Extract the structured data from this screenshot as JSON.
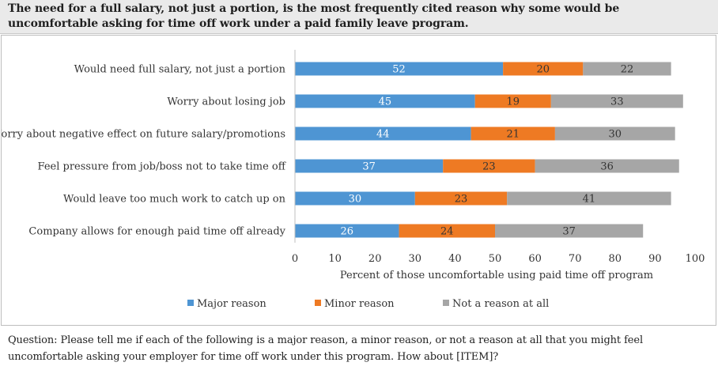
{
  "header": {
    "title": "The need for a full salary, not just a portion, is the most frequently cited reason why some would be uncomfortable asking for time off work under a paid family leave program."
  },
  "footer": {
    "question": "Question: Please tell me if each of the following is a major reason, a minor reason, or not a reason at all that you might feel uncomfortable asking your employer for time off work under this program. How about [ITEM]?"
  },
  "colors": {
    "major": "#4e95d3",
    "minor": "#ee7a23",
    "not": "#a6a6a6"
  },
  "chart_data": {
    "type": "bar",
    "orientation": "horizontal",
    "stacked": true,
    "categories": [
      "Would need full salary, not just a portion",
      "Worry about losing job",
      "Worry about negative effect on future salary/promotions",
      "Feel pressure from job/boss not to take time off",
      "Would leave too much work to catch up on",
      "Company allows for enough paid time off already"
    ],
    "series": [
      {
        "name": "Major reason",
        "values": [
          52,
          45,
          44,
          37,
          30,
          26
        ],
        "color": "#4e95d3"
      },
      {
        "name": "Minor reason",
        "values": [
          20,
          19,
          21,
          23,
          23,
          24
        ],
        "color": "#ee7a23"
      },
      {
        "name": "Not a reason at all",
        "values": [
          22,
          33,
          30,
          36,
          41,
          37
        ],
        "color": "#a6a6a6"
      }
    ],
    "xlabel": "Percent of those uncomfortable using paid time off program",
    "ylabel": "",
    "xlim": [
      0,
      100
    ],
    "xticks": [
      0,
      10,
      20,
      30,
      40,
      50,
      60,
      70,
      80,
      90,
      100
    ],
    "grid": false,
    "legend_position": "bottom"
  }
}
